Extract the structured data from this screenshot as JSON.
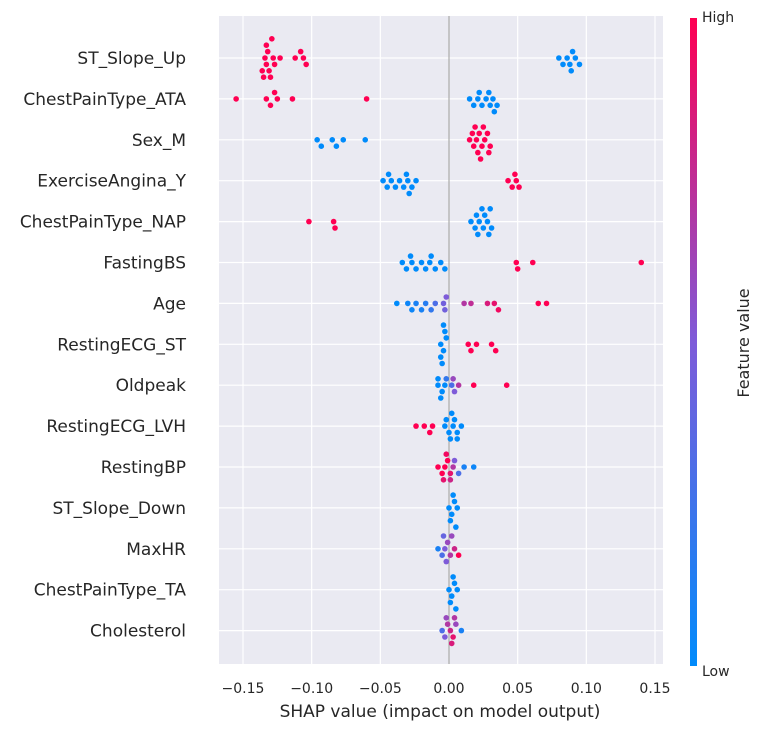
{
  "chart_data": {
    "type": "scatter",
    "subtype": "shap-beeswarm-summary",
    "xlabel": "SHAP value (impact on model output)",
    "xlim": [
      -0.17,
      0.155
    ],
    "xticks": [
      -0.15,
      -0.1,
      -0.05,
      0.0,
      0.05,
      0.1,
      0.15
    ],
    "xtick_labels": [
      "−0.15",
      "−0.10",
      "−0.05",
      "0.00",
      "0.05",
      "0.10",
      "0.15"
    ],
    "grid": true,
    "colorbar": {
      "label": "Feature value",
      "high_label": "High",
      "low_label": "Low",
      "low_color": "#008bfb",
      "mid_color": "#7e5bd9",
      "high_color": "#ff0052"
    },
    "features": [
      {
        "name": "ST_Slope_Up",
        "points": [
          [
            -0.134,
            1
          ],
          [
            -0.133,
            1
          ],
          [
            -0.132,
            1
          ],
          [
            -0.131,
            1
          ],
          [
            -0.133,
            1
          ],
          [
            -0.13,
            1
          ],
          [
            -0.128,
            1
          ],
          [
            -0.127,
            1
          ],
          [
            -0.136,
            1
          ],
          [
            -0.135,
            1
          ],
          [
            -0.129,
            1
          ],
          [
            -0.123,
            1
          ],
          [
            -0.112,
            1
          ],
          [
            -0.106,
            1
          ],
          [
            -0.104,
            1
          ],
          [
            -0.108,
            1
          ],
          [
            0.08,
            0
          ],
          [
            0.083,
            0
          ],
          [
            0.086,
            0
          ],
          [
            0.088,
            0
          ],
          [
            0.09,
            0
          ],
          [
            0.092,
            0
          ],
          [
            0.095,
            0
          ],
          [
            0.089,
            0
          ]
        ]
      },
      {
        "name": "ChestPainType_ATA",
        "points": [
          [
            -0.155,
            1
          ],
          [
            -0.133,
            1
          ],
          [
            -0.13,
            1
          ],
          [
            -0.125,
            1
          ],
          [
            -0.127,
            1
          ],
          [
            -0.114,
            1
          ],
          [
            -0.06,
            1
          ],
          [
            0.015,
            0
          ],
          [
            0.018,
            0
          ],
          [
            0.021,
            0
          ],
          [
            0.024,
            0
          ],
          [
            0.027,
            0
          ],
          [
            0.03,
            0
          ],
          [
            0.032,
            0
          ],
          [
            0.035,
            0
          ],
          [
            0.022,
            0
          ],
          [
            0.029,
            0
          ],
          [
            0.033,
            0
          ]
        ]
      },
      {
        "name": "Sex_M",
        "points": [
          [
            -0.096,
            0
          ],
          [
            -0.093,
            0
          ],
          [
            -0.085,
            0
          ],
          [
            -0.082,
            0
          ],
          [
            -0.077,
            0
          ],
          [
            -0.061,
            0
          ],
          [
            0.015,
            1
          ],
          [
            0.018,
            1
          ],
          [
            0.02,
            1
          ],
          [
            0.022,
            1
          ],
          [
            0.024,
            1
          ],
          [
            0.026,
            1
          ],
          [
            0.028,
            1
          ],
          [
            0.03,
            1
          ],
          [
            0.017,
            1
          ],
          [
            0.021,
            1
          ],
          [
            0.025,
            1
          ],
          [
            0.029,
            1
          ],
          [
            0.019,
            1
          ],
          [
            0.023,
            1
          ]
        ]
      },
      {
        "name": "ExerciseAngina_Y",
        "points": [
          [
            -0.048,
            0
          ],
          [
            -0.045,
            0
          ],
          [
            -0.042,
            0
          ],
          [
            -0.039,
            0
          ],
          [
            -0.036,
            0
          ],
          [
            -0.033,
            0
          ],
          [
            -0.03,
            0
          ],
          [
            -0.027,
            0
          ],
          [
            -0.024,
            0
          ],
          [
            -0.044,
            0
          ],
          [
            -0.031,
            0
          ],
          [
            -0.029,
            0
          ],
          [
            0.043,
            1
          ],
          [
            0.046,
            1
          ],
          [
            0.049,
            1
          ],
          [
            0.051,
            1
          ],
          [
            0.048,
            1
          ]
        ]
      },
      {
        "name": "ChestPainType_NAP",
        "points": [
          [
            -0.102,
            1
          ],
          [
            -0.084,
            1
          ],
          [
            -0.083,
            1
          ],
          [
            0.016,
            0
          ],
          [
            0.019,
            0
          ],
          [
            0.022,
            0
          ],
          [
            0.025,
            0
          ],
          [
            0.028,
            0
          ],
          [
            0.031,
            0
          ],
          [
            0.02,
            0
          ],
          [
            0.026,
            0
          ],
          [
            0.021,
            0
          ],
          [
            0.029,
            0
          ],
          [
            0.024,
            0
          ],
          [
            0.03,
            0
          ]
        ]
      },
      {
        "name": "FastingBS",
        "points": [
          [
            -0.034,
            0
          ],
          [
            -0.031,
            0
          ],
          [
            -0.027,
            0
          ],
          [
            -0.02,
            0
          ],
          [
            -0.017,
            0
          ],
          [
            -0.014,
            0
          ],
          [
            -0.01,
            0
          ],
          [
            -0.006,
            0
          ],
          [
            -0.003,
            0
          ],
          [
            -0.028,
            0
          ],
          [
            -0.013,
            0
          ],
          [
            -0.024,
            0
          ],
          [
            0.049,
            1
          ],
          [
            0.05,
            1
          ],
          [
            0.061,
            1
          ],
          [
            0.14,
            1
          ]
        ]
      },
      {
        "name": "Age",
        "points": [
          [
            -0.038,
            0
          ],
          [
            -0.03,
            0.05
          ],
          [
            -0.027,
            0.05
          ],
          [
            -0.024,
            0.1
          ],
          [
            -0.02,
            0.1
          ],
          [
            -0.017,
            0.15
          ],
          [
            -0.013,
            0.2
          ],
          [
            -0.01,
            0.3
          ],
          [
            -0.004,
            0.45
          ],
          [
            -0.003,
            0.45
          ],
          [
            -0.002,
            0.5
          ],
          [
            0.011,
            0.7
          ],
          [
            0.016,
            0.75
          ],
          [
            0.028,
            0.85
          ],
          [
            0.033,
            0.9
          ],
          [
            0.036,
            0.95
          ],
          [
            0.065,
            1
          ],
          [
            0.071,
            1
          ]
        ]
      },
      {
        "name": "RestingECG_ST",
        "points": [
          [
            -0.006,
            0
          ],
          [
            -0.004,
            0
          ],
          [
            -0.002,
            0
          ],
          [
            -0.006,
            0
          ],
          [
            -0.003,
            0
          ],
          [
            -0.005,
            0
          ],
          [
            -0.004,
            0
          ],
          [
            0.014,
            1
          ],
          [
            0.02,
            1
          ],
          [
            0.031,
            1
          ],
          [
            0.034,
            1
          ],
          [
            0.016,
            1
          ]
        ]
      },
      {
        "name": "Oldpeak",
        "points": [
          [
            -0.008,
            0
          ],
          [
            -0.005,
            0
          ],
          [
            -0.003,
            0
          ],
          [
            -0.008,
            0
          ],
          [
            -0.006,
            0
          ],
          [
            0.002,
            0.3
          ],
          [
            0.004,
            0.5
          ],
          [
            0.007,
            0.7
          ],
          [
            0.003,
            0.6
          ],
          [
            -0.002,
            0.2
          ],
          [
            0.018,
            1
          ],
          [
            0.042,
            1
          ]
        ]
      },
      {
        "name": "RestingECG_LVH",
        "points": [
          [
            -0.024,
            1
          ],
          [
            -0.018,
            1
          ],
          [
            -0.012,
            1
          ],
          [
            -0.014,
            1
          ],
          [
            -0.003,
            0
          ],
          [
            0.0,
            0
          ],
          [
            0.003,
            0
          ],
          [
            0.006,
            0
          ],
          [
            0.009,
            0
          ],
          [
            -0.002,
            0
          ],
          [
            0.004,
            0
          ],
          [
            0.001,
            0
          ],
          [
            0.006,
            0
          ],
          [
            0.002,
            0
          ]
        ]
      },
      {
        "name": "RestingBP",
        "points": [
          [
            -0.008,
            1
          ],
          [
            -0.005,
            1
          ],
          [
            -0.003,
            1
          ],
          [
            -0.001,
            1
          ],
          [
            0.001,
            0.9
          ],
          [
            0.003,
            0.7
          ],
          [
            -0.004,
            0.9
          ],
          [
            0.004,
            0.5
          ],
          [
            0.007,
            0.3
          ],
          [
            0.011,
            0.1
          ],
          [
            0.018,
            0.05
          ],
          [
            0.001,
            0.8
          ],
          [
            -0.002,
            0.95
          ]
        ]
      },
      {
        "name": "ST_Slope_Down",
        "points": [
          [
            0.0,
            0
          ],
          [
            0.002,
            0
          ],
          [
            0.004,
            0
          ],
          [
            0.006,
            0
          ],
          [
            0.001,
            0
          ],
          [
            0.003,
            0
          ],
          [
            0.005,
            0
          ]
        ]
      },
      {
        "name": "MaxHR",
        "points": [
          [
            -0.008,
            0.1
          ],
          [
            -0.005,
            0.3
          ],
          [
            -0.003,
            0.5
          ],
          [
            -0.001,
            0.6
          ],
          [
            0.001,
            0.7
          ],
          [
            0.004,
            0.8
          ],
          [
            0.007,
            1
          ],
          [
            -0.002,
            0.5
          ],
          [
            0.002,
            0.6
          ],
          [
            -0.004,
            0.4
          ]
        ]
      },
      {
        "name": "ChestPainType_TA",
        "points": [
          [
            0.0,
            0
          ],
          [
            0.002,
            0
          ],
          [
            0.004,
            0
          ],
          [
            0.006,
            0
          ],
          [
            0.001,
            0
          ],
          [
            0.003,
            0
          ],
          [
            0.005,
            0
          ]
        ]
      },
      {
        "name": "Cholesterol",
        "points": [
          [
            -0.005,
            0.3
          ],
          [
            -0.003,
            0.5
          ],
          [
            -0.001,
            0.7
          ],
          [
            0.001,
            0.8
          ],
          [
            0.003,
            0.9
          ],
          [
            0.005,
            0.6
          ],
          [
            0.009,
            0.1
          ],
          [
            0.002,
            0.85
          ],
          [
            -0.002,
            0.6
          ],
          [
            0.004,
            0.7
          ]
        ]
      }
    ]
  }
}
